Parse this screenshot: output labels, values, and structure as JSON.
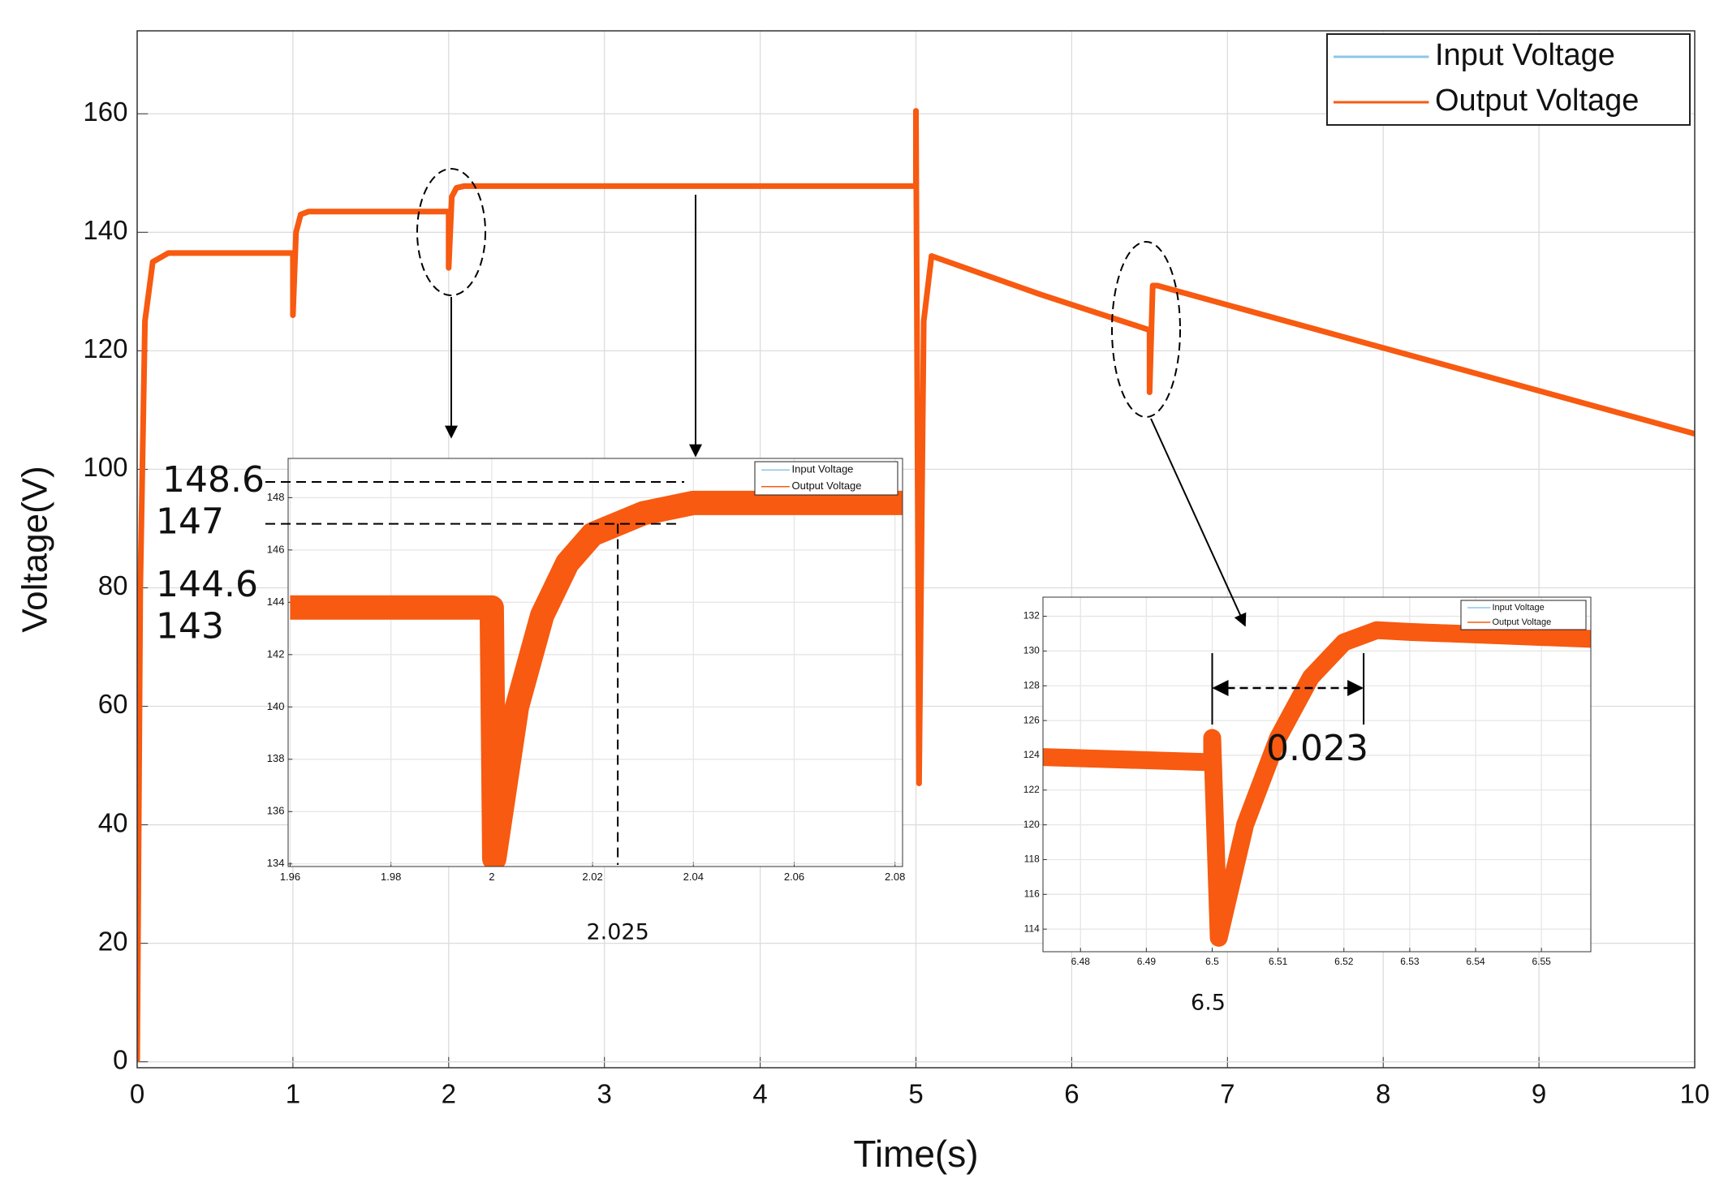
{
  "chart_data": [
    {
      "type": "line",
      "xlabel": "Time(s)",
      "ylabel": "Voltage(V)",
      "x": [
        0,
        0.02,
        0.05,
        0.1,
        0.2,
        1,
        1,
        1.02,
        1.05,
        1.1,
        2,
        2,
        2.02,
        2.05,
        2.1,
        5,
        5,
        5.01,
        5.02,
        5.05,
        5.1,
        5.8,
        6.5,
        6.5,
        6.52,
        6.55,
        10
      ],
      "series": [
        {
          "name": "Input Voltage",
          "color": "#8ec5ea",
          "values": [
            null,
            null,
            null,
            null,
            null,
            null,
            null,
            null,
            null,
            null,
            null,
            null,
            null,
            null,
            null,
            null,
            null,
            null,
            null,
            null,
            null,
            null,
            null,
            null,
            null,
            null,
            null
          ]
        },
        {
          "name": "Output Voltage",
          "color": "#f75a10",
          "values": [
            0,
            80,
            125,
            135,
            136.5,
            136.5,
            126,
            140,
            143,
            143.5,
            143.5,
            134,
            146,
            147.5,
            147.8,
            147.8,
            160.5,
            104,
            47,
            125,
            136,
            129.5,
            123.5,
            113,
            131,
            131,
            106
          ]
        }
      ],
      "xlim": [
        0,
        10
      ],
      "ylim": [
        -1,
        174
      ],
      "xticks": [
        0,
        1,
        2,
        3,
        4,
        5,
        6,
        7,
        8,
        9,
        10
      ],
      "yticks": [
        0,
        20,
        40,
        60,
        80,
        100,
        120,
        140,
        160
      ],
      "grid": true,
      "legend": "upper right"
    },
    {
      "type": "line",
      "x": [
        1.96,
        2.0,
        2.0,
        2.0005,
        2.005,
        2.01,
        2.015,
        2.02,
        2.03,
        2.04,
        2.0815
      ],
      "series": [
        {
          "name": "Input Voltage",
          "color": "#8ec5ea",
          "values": [
            null,
            null,
            null,
            null,
            null,
            null,
            null,
            null,
            null,
            null,
            null
          ]
        },
        {
          "name": "Output Voltage",
          "color": "#f75a10",
          "values": [
            143.8,
            143.8,
            143.8,
            134.2,
            140,
            143.5,
            145.5,
            146.6,
            147.4,
            147.8,
            147.8
          ]
        }
      ],
      "xlim": [
        1.9596,
        2.0815
      ],
      "ylim": [
        133.9,
        149.5
      ],
      "xticks": [
        1.96,
        1.98,
        2,
        2.02,
        2.04,
        2.06,
        2.08
      ],
      "yticks": [
        134,
        136,
        138,
        140,
        142,
        144,
        146,
        148
      ],
      "grid": true,
      "legend": "upper right",
      "levels": [
        148.6,
        147,
        144.6,
        143
      ],
      "marker_x": 2.025
    },
    {
      "type": "line",
      "x": [
        6.4743,
        6.5,
        6.5,
        6.501,
        6.505,
        6.51,
        6.515,
        6.52,
        6.525,
        6.53,
        6.5575
      ],
      "series": [
        {
          "name": "Input Voltage",
          "color": "#8ec5ea",
          "values": [
            null,
            null,
            null,
            null,
            null,
            null,
            null,
            null,
            null,
            null,
            null
          ]
        },
        {
          "name": "Output Voltage",
          "color": "#f75a10",
          "values": [
            123.9,
            123.6,
            125,
            113.5,
            120,
            125,
            128.5,
            130.5,
            131.2,
            131.1,
            130.7
          ]
        }
      ],
      "xlim": [
        6.4743,
        6.5575
      ],
      "ylim": [
        112.7,
        133.1
      ],
      "xticks": [
        6.48,
        6.49,
        6.5,
        6.51,
        6.52,
        6.53,
        6.54,
        6.55
      ],
      "yticks": [
        114,
        116,
        118,
        120,
        122,
        124,
        126,
        128,
        130,
        132
      ],
      "grid": true,
      "legend": "upper right",
      "marker_x": 6.5,
      "interval_width": 0.023
    }
  ]
}
